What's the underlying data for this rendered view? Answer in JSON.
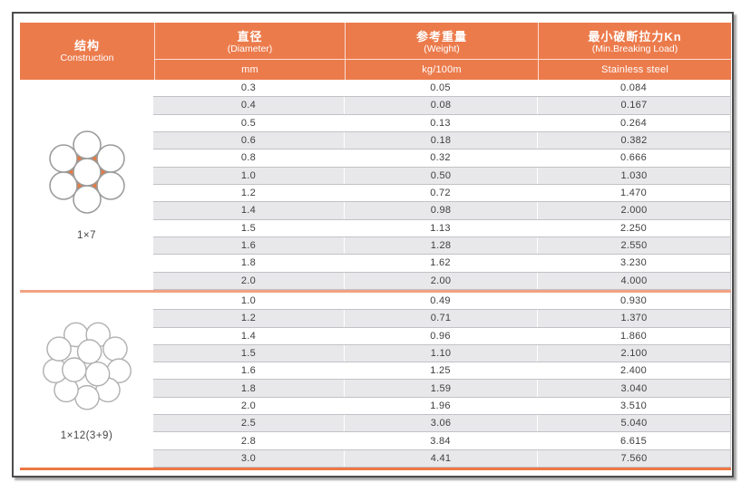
{
  "table": {
    "columns": [
      {
        "zh": "结构",
        "en": "Construction"
      },
      {
        "zh": "直径",
        "en": "(Diameter)",
        "unit": "mm"
      },
      {
        "zh": "参考重量",
        "en": "(Weight)",
        "unit": "kg/100m"
      },
      {
        "zh": "最小破断拉力Kn",
        "en": "(Min.Breaking Load)",
        "unit": "Stainless steel"
      }
    ],
    "sections": [
      {
        "construction_label": "1×7",
        "diagram": "wire-rope-1x7-cross-section",
        "rows": [
          [
            "0.3",
            "0.05",
            "0.084"
          ],
          [
            "0.4",
            "0.08",
            "0.167"
          ],
          [
            "0.5",
            "0.13",
            "0.264"
          ],
          [
            "0.6",
            "0.18",
            "0.382"
          ],
          [
            "0.8",
            "0.32",
            "0.666"
          ],
          [
            "1.0",
            "0.50",
            "1.030"
          ],
          [
            "1.2",
            "0.72",
            "1.470"
          ],
          [
            "1.4",
            "0.98",
            "2.000"
          ],
          [
            "1.5",
            "1.13",
            "2.250"
          ],
          [
            "1.6",
            "1.28",
            "2.550"
          ],
          [
            "1.8",
            "1.62",
            "3.230"
          ],
          [
            "2.0",
            "2.00",
            "4.000"
          ]
        ]
      },
      {
        "construction_label": "1×12(3+9)",
        "diagram": "wire-rope-1x12-cross-section",
        "rows": [
          [
            "1.0",
            "0.49",
            "0.930"
          ],
          [
            "1.2",
            "0.71",
            "1.370"
          ],
          [
            "1.4",
            "0.96",
            "1.860"
          ],
          [
            "1.5",
            "1.10",
            "2.100"
          ],
          [
            "1.6",
            "1.25",
            "2.400"
          ],
          [
            "1.8",
            "1.59",
            "3.040"
          ],
          [
            "2.0",
            "1.96",
            "3.510"
          ],
          [
            "2.5",
            "3.06",
            "5.040"
          ],
          [
            "2.8",
            "3.84",
            "6.615"
          ],
          [
            "3.0",
            "4.41",
            "7.560"
          ]
        ]
      }
    ]
  },
  "colors": {
    "header_orange": "#EC7B4C",
    "section_divider_orange": "#F3A184",
    "bottom_rule_orange": "#EC7843",
    "stripe_gray": "#E8E8EA",
    "stripe_border_gray": "#C2C2C6",
    "body_text": "#3E3E40",
    "frame_border": "#4C4C4C",
    "diagram_interstice_orange": "#E8793F"
  }
}
